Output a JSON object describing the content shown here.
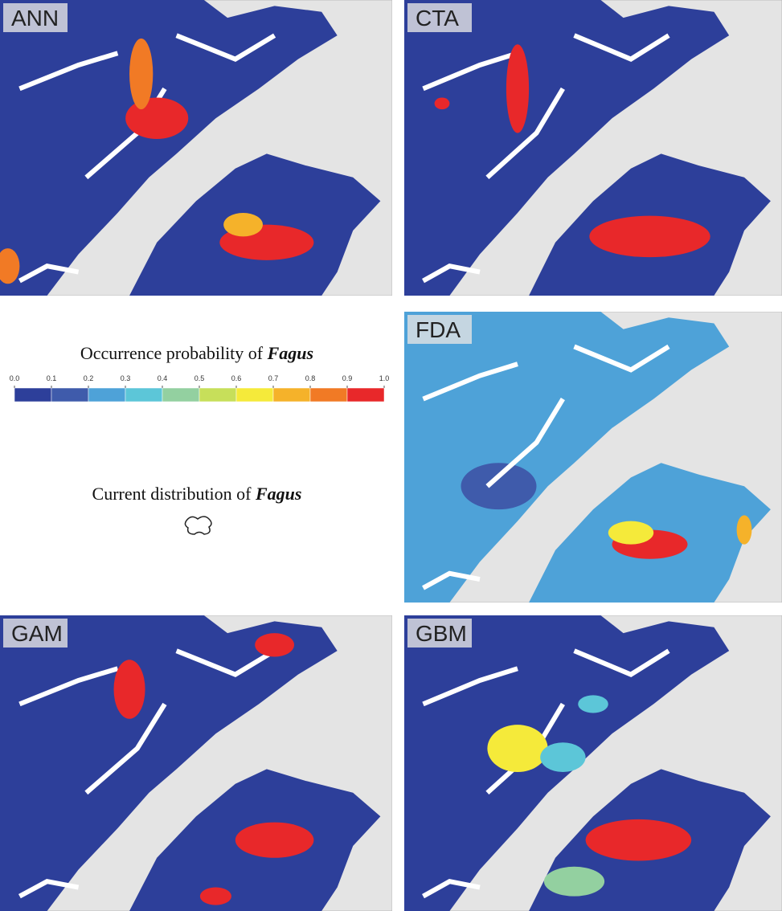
{
  "panels": [
    {
      "label": "ANN"
    },
    {
      "label": "CTA"
    },
    {
      "label": "FDA"
    },
    {
      "label": "GAM"
    },
    {
      "label": "GBM"
    }
  ],
  "legend": {
    "title": "Occurrence probability of ",
    "title_species": "Fagus",
    "ticks": [
      {
        "value": 0,
        "label": "0.0"
      },
      0.1,
      0.2,
      0.3,
      0.4,
      0.5,
      0.6,
      0.7,
      0.8,
      0.9,
      {
        "value": 1,
        "label": "1.0"
      }
    ],
    "colors": [
      "#2d3f9a",
      "#3f5bab",
      "#4ea2d8",
      "#5cc6d8",
      "#93d0a0",
      "#c7df5a",
      "#f5ea3a",
      "#f5b22a",
      "#f17a25",
      "#e8282a"
    ]
  },
  "current": {
    "text": "Current distribution of ",
    "species": "Fagus"
  }
}
